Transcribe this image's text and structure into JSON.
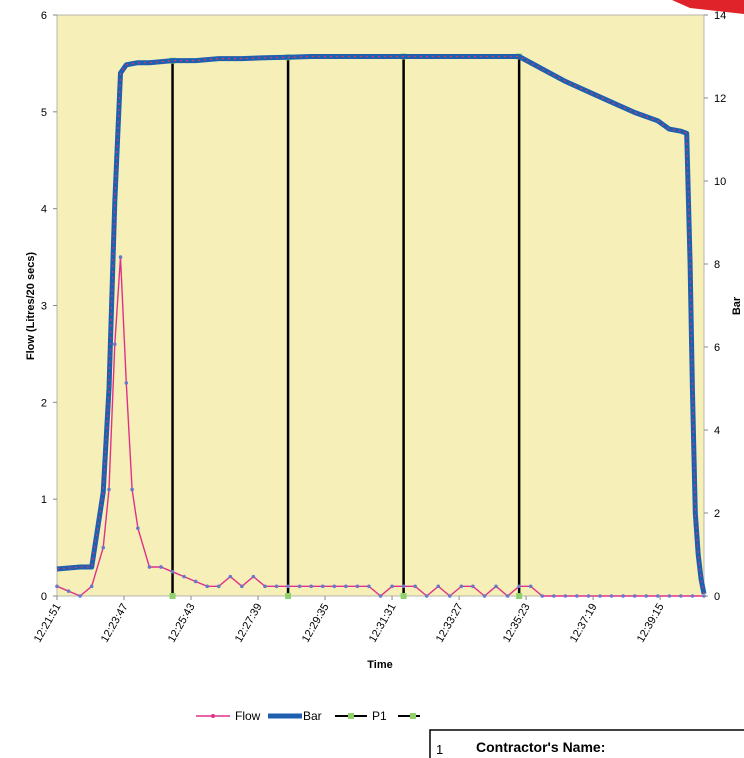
{
  "chart_data": {
    "type": "line",
    "title": "",
    "xlabel": "Time",
    "ylabel_left": "Flow (Litres/20 secs)",
    "ylabel_right": "Bar",
    "ylim_left": [
      0,
      6
    ],
    "ylim_right": [
      0,
      14
    ],
    "yticks_left": [
      "0",
      "1",
      "2",
      "3",
      "4",
      "5",
      "6"
    ],
    "yticks_right": [
      "0",
      "2",
      "4",
      "6",
      "8",
      "10",
      "12",
      "14"
    ],
    "x_tick_labels": [
      "12:21:51",
      "12:23:47",
      "12:25:43",
      "12:27:39",
      "12:29:35",
      "12:31:31",
      "12:33:27",
      "12:35:23",
      "12:37:19",
      "12:39:15"
    ],
    "x_range_seconds": [
      0,
      1120
    ],
    "series": [
      {
        "name": "Flow",
        "axis": "left",
        "color": "#e0318a",
        "points": [
          [
            0,
            0.1
          ],
          [
            20,
            0.05
          ],
          [
            40,
            0
          ],
          [
            60,
            0.1
          ],
          [
            80,
            0.5
          ],
          [
            90,
            1.1
          ],
          [
            100,
            2.6
          ],
          [
            110,
            3.5
          ],
          [
            120,
            2.2
          ],
          [
            130,
            1.1
          ],
          [
            140,
            0.7
          ],
          [
            160,
            0.3
          ],
          [
            180,
            0.3
          ],
          [
            200,
            0.25
          ],
          [
            220,
            0.2
          ],
          [
            240,
            0.15
          ],
          [
            260,
            0.1
          ],
          [
            280,
            0.1
          ],
          [
            300,
            0.2
          ],
          [
            320,
            0.1
          ],
          [
            340,
            0.2
          ],
          [
            360,
            0.1
          ],
          [
            380,
            0.1
          ],
          [
            400,
            0.1
          ],
          [
            420,
            0.1
          ],
          [
            440,
            0.1
          ],
          [
            460,
            0.1
          ],
          [
            480,
            0.1
          ],
          [
            500,
            0.1
          ],
          [
            520,
            0.1
          ],
          [
            540,
            0.1
          ],
          [
            560,
            0
          ],
          [
            580,
            0.1
          ],
          [
            600,
            0.1
          ],
          [
            620,
            0.1
          ],
          [
            640,
            0
          ],
          [
            660,
            0.1
          ],
          [
            680,
            0
          ],
          [
            700,
            0.1
          ],
          [
            720,
            0.1
          ],
          [
            740,
            0
          ],
          [
            760,
            0.1
          ],
          [
            780,
            0
          ],
          [
            800,
            0.1
          ],
          [
            820,
            0.1
          ],
          [
            840,
            0
          ],
          [
            860,
            0
          ],
          [
            880,
            0
          ],
          [
            900,
            0
          ],
          [
            920,
            0
          ],
          [
            940,
            0
          ],
          [
            960,
            0
          ],
          [
            980,
            0
          ],
          [
            1000,
            0
          ],
          [
            1020,
            0
          ],
          [
            1040,
            0
          ],
          [
            1060,
            0
          ],
          [
            1080,
            0
          ],
          [
            1100,
            0
          ],
          [
            1120,
            0
          ]
        ]
      },
      {
        "name": "Bar",
        "axis": "right",
        "color": "#1f5fb0",
        "points": [
          [
            0,
            0.65
          ],
          [
            40,
            0.7
          ],
          [
            60,
            0.7
          ],
          [
            80,
            2.5
          ],
          [
            90,
            5
          ],
          [
            100,
            9.5
          ],
          [
            110,
            12.6
          ],
          [
            120,
            12.8
          ],
          [
            140,
            12.85
          ],
          [
            160,
            12.85
          ],
          [
            200,
            12.9
          ],
          [
            240,
            12.9
          ],
          [
            280,
            12.95
          ],
          [
            320,
            12.95
          ],
          [
            360,
            12.97
          ],
          [
            400,
            12.98
          ],
          [
            440,
            13.0
          ],
          [
            480,
            13.0
          ],
          [
            520,
            13.0
          ],
          [
            560,
            13.0
          ],
          [
            600,
            13.0
          ],
          [
            640,
            13.0
          ],
          [
            680,
            13.0
          ],
          [
            720,
            13.0
          ],
          [
            760,
            13.0
          ],
          [
            800,
            13.0
          ],
          [
            840,
            12.7
          ],
          [
            880,
            12.4
          ],
          [
            920,
            12.15
          ],
          [
            960,
            11.9
          ],
          [
            1000,
            11.65
          ],
          [
            1040,
            11.45
          ],
          [
            1060,
            11.25
          ],
          [
            1080,
            11.2
          ],
          [
            1090,
            11.15
          ],
          [
            1096,
            8
          ],
          [
            1100,
            5
          ],
          [
            1105,
            2
          ],
          [
            1110,
            1
          ],
          [
            1115,
            0.4
          ],
          [
            1120,
            0.05
          ]
        ]
      },
      {
        "name": "P1",
        "axis": "right",
        "color": "#000000",
        "markers_x": [
          200,
          400,
          600,
          800
        ]
      }
    ],
    "legend": {
      "position": "bottom",
      "items": [
        "Flow",
        "Bar",
        "P1"
      ]
    },
    "grid": false,
    "background": "#f6f0b8"
  },
  "info_box": {
    "number": "1",
    "label": "Contractor's Name:"
  }
}
